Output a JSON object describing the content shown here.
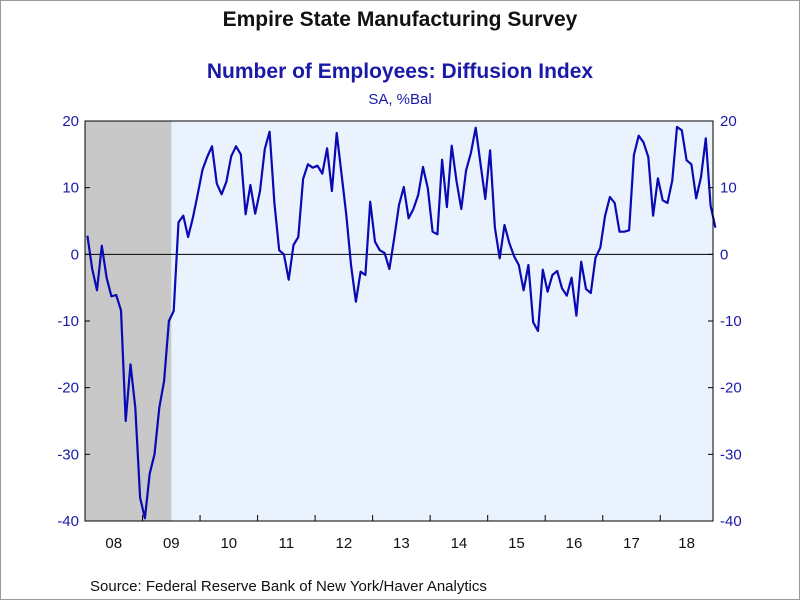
{
  "header": {
    "title": "Empire State Manufacturing Survey",
    "subtitle": "Number of Employees: Diffusion Index",
    "units": "SA, %Bal"
  },
  "footer": {
    "source": "Source:  Federal Reserve Bank of New York/Haver Analytics"
  },
  "colors": {
    "line": "#0a0ab4",
    "plot_background": "#eaf3fd",
    "recession_shade": "#c8c8c8",
    "axis_text": "#1a1aa8"
  },
  "chart_data": {
    "type": "line",
    "title": "Number of Employees: Diffusion Index",
    "ylabel": "SA, %Bal",
    "ylim": [
      -40,
      20
    ],
    "yticks": [
      20,
      10,
      0,
      -10,
      -20,
      -30,
      -40
    ],
    "y_tick_labels": [
      "20",
      "10",
      "0",
      "-10",
      "-20",
      "-30",
      "-40"
    ],
    "x_range": [
      "2008-01",
      "2018-11"
    ],
    "year_labels": [
      "08",
      "09",
      "10",
      "11",
      "12",
      "13",
      "14",
      "15",
      "16",
      "17",
      "18"
    ],
    "zero_line": true,
    "recession_band": {
      "start": "2008-01",
      "end": "2009-06"
    },
    "series": [
      {
        "start": "2008-01",
        "frequency": "monthly",
        "values": [
          2.8,
          -2.2,
          -5.4,
          1.3,
          -3.5,
          -6.3,
          -6.1,
          -8.4,
          -25,
          -16.5,
          -23,
          -36.5,
          -39.6,
          -32.9,
          -30,
          -23,
          -19,
          -10,
          -8.5,
          4.8,
          5.8,
          2.6,
          5.5,
          9,
          12.7,
          14.6,
          16.2,
          10.6,
          9,
          10.9,
          14.7,
          16.2,
          15,
          6,
          10.4,
          6.1,
          9.5,
          15.8,
          18.4,
          7.7,
          0.6,
          0,
          -3.8,
          1.4,
          2.6,
          11.3,
          13.5,
          13,
          13.3,
          12.1,
          15.9,
          9.5,
          18.2,
          12.1,
          5.9,
          -1.7,
          -7.1,
          -2.6,
          -3.1,
          7.9,
          1.9,
          0.6,
          0.2,
          -2.2,
          2.4,
          7.4,
          10.1,
          5.4,
          6.8,
          8.9,
          13.1,
          9.9,
          3.4,
          3,
          14.2,
          7.1,
          16.3,
          11,
          6.8,
          12.6,
          15.2,
          19,
          13.6,
          8.3,
          15.6,
          4,
          -0.6,
          4.4,
          1.7,
          -0.3,
          -1.6,
          -5.4,
          -1.6,
          -10.2,
          -11.5,
          -2.3,
          -5.6,
          -3.1,
          -2.5,
          -5.1,
          -6.2,
          -3.5,
          -9.2,
          -1.1,
          -5.2,
          -5.8,
          -0.5,
          1,
          5.8,
          8.6,
          7.7,
          3.4,
          3.4,
          3.6,
          14.9,
          17.8,
          16.8,
          14.6,
          5.8,
          11.4,
          8.1,
          7.7,
          11.1,
          19.1,
          18.6,
          14.1,
          13.5,
          8.4,
          11.6,
          17.4,
          7.3,
          4
        ]
      }
    ]
  }
}
